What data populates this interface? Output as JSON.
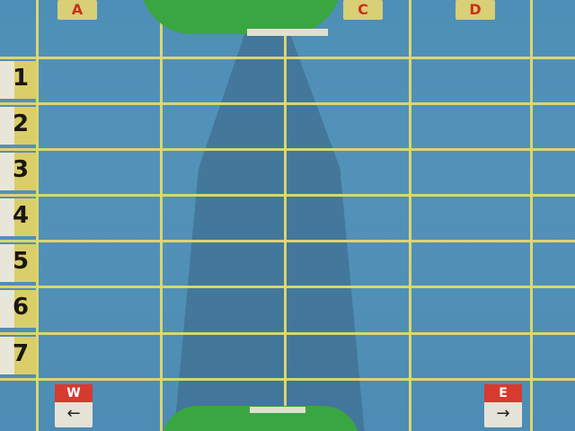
{
  "scene": {
    "column_labels": [
      "A",
      "C",
      "D"
    ],
    "row_labels": [
      "1",
      "2",
      "3",
      "4",
      "5",
      "6",
      "7"
    ],
    "direction_cards": [
      {
        "letter": "W",
        "arrow": "←"
      },
      {
        "letter": "E",
        "arrow": "→"
      }
    ],
    "colors": {
      "board_blue": "#5292b8",
      "grid_yellow": "#e4d96a",
      "tab_yellow": "#d9ce6a",
      "card_red": "#d73a2f",
      "green_object": "#39a642"
    }
  }
}
